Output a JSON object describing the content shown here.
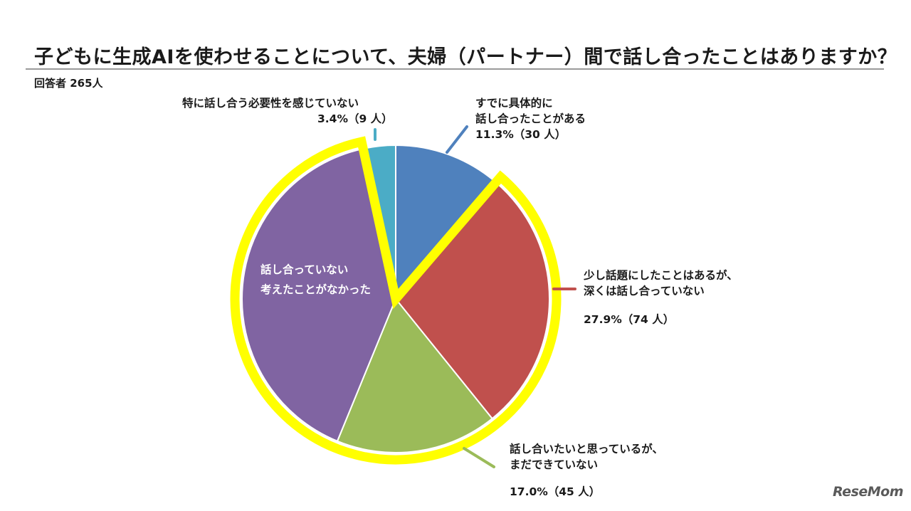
{
  "title": "子どもに生成AIを使わせることについて、夫婦（パートナー）間で話し合ったことはありますか？",
  "respondents": "回答者 265人",
  "logo": "ReseMom",
  "chart_data": {
    "type": "pie",
    "title": "子どもに生成AIを使わせることについて、夫婦（パートナー）間で話し合ったことはありますか？",
    "start": "12 o'clock, clockwise",
    "highlighted": "少し話題にしたことはあるが、深くは話し合っていない + 話し合っていない 考えたことがなかった (yellow outline)",
    "slices": [
      {
        "label_lines": [
          "すでに具体的に",
          "話し合ったことがある"
        ],
        "value": 11.3,
        "count": 30,
        "pct_text": "11.3%（30 人）",
        "color": "#4f81bd"
      },
      {
        "label_lines": [
          "少し話題にしたことはあるが、",
          "深くは話し合っていない"
        ],
        "value": 27.9,
        "count": 74,
        "pct_text": "27.9%（74 人）",
        "color": "#c0504d"
      },
      {
        "label_lines": [
          "話し合いたいと思っているが、",
          "まだできていない"
        ],
        "value": 17.0,
        "count": 45,
        "pct_text": "17.0%（45 人）",
        "color": "#9bbb59"
      },
      {
        "label_lines": [
          "話し合っていない",
          "考えたことがなかった"
        ],
        "value": 40.4,
        "count": 107,
        "pct_text": "",
        "color": "#8064a2"
      },
      {
        "label_lines": [
          "特に話し合う必要性を感じていない"
        ],
        "value": 3.4,
        "count": 9,
        "pct_text": "3.4%（9 人）",
        "color": "#4bacc6"
      }
    ],
    "highlight_color": "#ffff00"
  }
}
